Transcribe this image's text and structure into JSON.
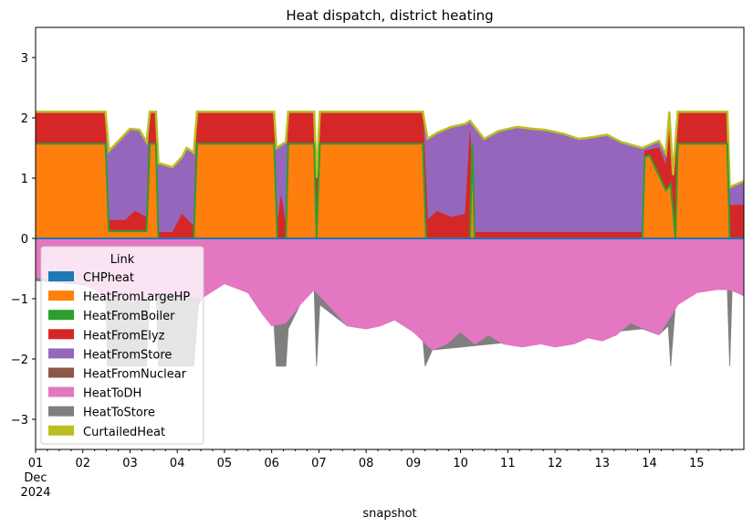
{
  "chart_data": {
    "type": "area",
    "title": "Heat dispatch, district heating",
    "xlabel": "snapshot",
    "ylabel": "",
    "ylim": [
      -3.5,
      3.5
    ],
    "xlim": [
      1,
      16
    ],
    "yticks": [
      -3,
      -2,
      -1,
      0,
      1,
      2,
      3
    ],
    "xticks": [
      {
        "x": 1,
        "label": "01"
      },
      {
        "x": 2,
        "label": "02"
      },
      {
        "x": 3,
        "label": "03"
      },
      {
        "x": 4,
        "label": "04"
      },
      {
        "x": 5,
        "label": "05"
      },
      {
        "x": 6,
        "label": "06"
      },
      {
        "x": 7,
        "label": "07"
      },
      {
        "x": 8,
        "label": "08"
      },
      {
        "x": 9,
        "label": "09"
      },
      {
        "x": 10,
        "label": "10"
      },
      {
        "x": 11,
        "label": "11"
      },
      {
        "x": 12,
        "label": "12"
      },
      {
        "x": 13,
        "label": "13"
      },
      {
        "x": 14,
        "label": "14"
      },
      {
        "x": 15,
        "label": "15"
      }
    ],
    "xtick_sub1": "Dec",
    "xtick_sub2": "2024",
    "grid": false,
    "legend": {
      "title": "Link",
      "placement": "lower-left",
      "entries": [
        {
          "name": "CHPheat",
          "color": "#1f77b4"
        },
        {
          "name": "HeatFromLargeHP",
          "color": "#ff7f0e"
        },
        {
          "name": "HeatFromBoiler",
          "color": "#2ca02c"
        },
        {
          "name": "HeatFromElyz",
          "color": "#d62728"
        },
        {
          "name": "HeatFromStore",
          "color": "#9467bd"
        },
        {
          "name": "HeatFromNuclear",
          "color": "#8c564b"
        },
        {
          "name": "HeatToDH",
          "color": "#e377c2"
        },
        {
          "name": "HeatToStore",
          "color": "#7f7f7f"
        },
        {
          "name": "CurtailedHeat",
          "color": "#bcbd22"
        }
      ]
    },
    "positive_series": [
      {
        "name": "HeatFromLargeHP",
        "color": "#ff7f0e",
        "points": [
          [
            1,
            1.57
          ],
          [
            2.48,
            1.57
          ],
          [
            2.55,
            0.12
          ],
          [
            3.35,
            0.12
          ],
          [
            3.42,
            1.57
          ],
          [
            3.55,
            1.57
          ],
          [
            3.6,
            0
          ],
          [
            4.35,
            0
          ],
          [
            4.42,
            1.57
          ],
          [
            6.05,
            1.57
          ],
          [
            6.12,
            0
          ],
          [
            6.3,
            0
          ],
          [
            6.35,
            1.57
          ],
          [
            6.9,
            1.57
          ],
          [
            6.95,
            0
          ],
          [
            7.02,
            1.57
          ],
          [
            9.2,
            1.57
          ],
          [
            9.27,
            0
          ],
          [
            10.2,
            0
          ],
          [
            10.25,
            1.57
          ],
          [
            10.3,
            0
          ],
          [
            13.85,
            0
          ],
          [
            13.9,
            1.35
          ],
          [
            14.0,
            1.38
          ],
          [
            14.35,
            0.8
          ],
          [
            14.45,
            0.9
          ],
          [
            14.55,
            0
          ],
          [
            14.6,
            1.57
          ],
          [
            15.65,
            1.57
          ],
          [
            15.7,
            0
          ],
          [
            16,
            0
          ]
        ]
      },
      {
        "name": "HeatFromElyz",
        "color": "#d62728",
        "points": [
          [
            1,
            2.1
          ],
          [
            2.48,
            2.1
          ],
          [
            2.52,
            0.3
          ],
          [
            2.9,
            0.3
          ],
          [
            3.1,
            0.45
          ],
          [
            3.35,
            0.35
          ],
          [
            3.42,
            2.1
          ],
          [
            3.55,
            2.1
          ],
          [
            3.6,
            0.1
          ],
          [
            3.9,
            0.1
          ],
          [
            4.1,
            0.4
          ],
          [
            4.35,
            0.2
          ],
          [
            4.42,
            2.1
          ],
          [
            6.05,
            2.1
          ],
          [
            6.1,
            0.1
          ],
          [
            6.2,
            0.7
          ],
          [
            6.3,
            0.2
          ],
          [
            6.35,
            2.1
          ],
          [
            6.9,
            2.1
          ],
          [
            6.95,
            1.0
          ],
          [
            7.02,
            2.1
          ],
          [
            9.2,
            2.1
          ],
          [
            9.3,
            0.3
          ],
          [
            9.5,
            0.45
          ],
          [
            9.8,
            0.35
          ],
          [
            10.1,
            0.4
          ],
          [
            10.2,
            1.75
          ],
          [
            10.3,
            0.1
          ],
          [
            13.85,
            0.1
          ],
          [
            13.9,
            1.45
          ],
          [
            14.2,
            1.5
          ],
          [
            14.35,
            1.2
          ],
          [
            14.42,
            2.1
          ],
          [
            14.5,
            1.0
          ],
          [
            14.6,
            2.1
          ],
          [
            15.65,
            2.1
          ],
          [
            15.7,
            0.55
          ],
          [
            16,
            0.55
          ]
        ]
      },
      {
        "name": "HeatFromStore",
        "color": "#9467bd",
        "points": [
          [
            1,
            2.1
          ],
          [
            2.48,
            2.1
          ],
          [
            2.55,
            1.45
          ],
          [
            2.8,
            1.65
          ],
          [
            3.0,
            1.82
          ],
          [
            3.2,
            1.8
          ],
          [
            3.35,
            1.6
          ],
          [
            3.42,
            2.1
          ],
          [
            3.55,
            2.1
          ],
          [
            3.6,
            1.25
          ],
          [
            3.9,
            1.18
          ],
          [
            4.1,
            1.35
          ],
          [
            4.2,
            1.5
          ],
          [
            4.35,
            1.42
          ],
          [
            4.42,
            2.1
          ],
          [
            6.05,
            2.1
          ],
          [
            6.1,
            1.5
          ],
          [
            6.3,
            1.6
          ],
          [
            6.35,
            2.1
          ],
          [
            6.9,
            2.1
          ],
          [
            6.95,
            1.0
          ],
          [
            7.02,
            2.1
          ],
          [
            9.2,
            2.1
          ],
          [
            9.3,
            1.65
          ],
          [
            9.5,
            1.75
          ],
          [
            9.8,
            1.85
          ],
          [
            10.1,
            1.9
          ],
          [
            10.2,
            1.95
          ],
          [
            10.35,
            1.8
          ],
          [
            10.5,
            1.65
          ],
          [
            10.8,
            1.78
          ],
          [
            11.2,
            1.85
          ],
          [
            11.5,
            1.82
          ],
          [
            11.8,
            1.8
          ],
          [
            12.2,
            1.73
          ],
          [
            12.5,
            1.65
          ],
          [
            12.8,
            1.68
          ],
          [
            13.1,
            1.72
          ],
          [
            13.4,
            1.6
          ],
          [
            13.85,
            1.5
          ],
          [
            14.2,
            1.62
          ],
          [
            14.35,
            1.4
          ],
          [
            14.42,
            2.1
          ],
          [
            14.5,
            1.05
          ],
          [
            14.6,
            2.1
          ],
          [
            15.65,
            2.1
          ],
          [
            15.7,
            0.85
          ],
          [
            16,
            0.95
          ]
        ]
      }
    ],
    "negative_series": [
      {
        "name": "HeatToDH",
        "color": "#e377c2",
        "points": [
          [
            1,
            -0.65
          ],
          [
            2.0,
            -0.75
          ],
          [
            2.5,
            -0.95
          ],
          [
            3.0,
            -1.05
          ],
          [
            3.5,
            -0.95
          ],
          [
            4.0,
            -0.9
          ],
          [
            4.5,
            -1.0
          ],
          [
            5.0,
            -0.75
          ],
          [
            5.5,
            -0.9
          ],
          [
            5.8,
            -1.25
          ],
          [
            6.0,
            -1.45
          ],
          [
            6.3,
            -1.4
          ],
          [
            6.6,
            -1.1
          ],
          [
            6.9,
            -0.85
          ],
          [
            7.2,
            -1.1
          ],
          [
            7.6,
            -1.45
          ],
          [
            8.0,
            -1.5
          ],
          [
            8.3,
            -1.45
          ],
          [
            8.6,
            -1.35
          ],
          [
            9.0,
            -1.55
          ],
          [
            9.4,
            -1.85
          ],
          [
            9.7,
            -1.75
          ],
          [
            10.0,
            -1.55
          ],
          [
            10.3,
            -1.75
          ],
          [
            10.6,
            -1.6
          ],
          [
            10.9,
            -1.75
          ],
          [
            11.3,
            -1.8
          ],
          [
            11.7,
            -1.75
          ],
          [
            12.0,
            -1.8
          ],
          [
            12.4,
            -1.75
          ],
          [
            12.7,
            -1.65
          ],
          [
            13.0,
            -1.7
          ],
          [
            13.3,
            -1.6
          ],
          [
            13.6,
            -1.4
          ],
          [
            13.9,
            -1.5
          ],
          [
            14.2,
            -1.6
          ],
          [
            14.6,
            -1.1
          ],
          [
            15.0,
            -0.9
          ],
          [
            15.4,
            -0.85
          ],
          [
            15.7,
            -0.85
          ],
          [
            16,
            -0.95
          ]
        ]
      },
      {
        "name": "HeatToStore",
        "color": "#7f7f7f",
        "points": [
          [
            1,
            -0.7
          ],
          [
            2.48,
            -0.8
          ],
          [
            2.52,
            -2.12
          ],
          [
            3.35,
            -2.12
          ],
          [
            3.42,
            -0.95
          ],
          [
            3.55,
            -0.95
          ],
          [
            3.6,
            -2.12
          ],
          [
            4.35,
            -2.12
          ],
          [
            4.45,
            -1.1
          ],
          [
            4.7,
            -0.8
          ],
          [
            5.0,
            -0.75
          ],
          [
            5.5,
            -0.9
          ],
          [
            5.8,
            -1.25
          ],
          [
            6.05,
            -1.45
          ],
          [
            6.1,
            -2.12
          ],
          [
            6.3,
            -2.12
          ],
          [
            6.35,
            -1.5
          ],
          [
            6.6,
            -1.1
          ],
          [
            6.9,
            -0.85
          ],
          [
            6.95,
            -2.12
          ],
          [
            7.02,
            -1.1
          ],
          [
            7.6,
            -1.45
          ],
          [
            8.0,
            -1.5
          ],
          [
            8.3,
            -1.45
          ],
          [
            8.6,
            -1.35
          ],
          [
            9.0,
            -1.55
          ],
          [
            9.2,
            -1.65
          ],
          [
            9.25,
            -2.12
          ],
          [
            9.4,
            -1.85
          ],
          [
            13.85,
            -1.5
          ],
          [
            14.2,
            -1.6
          ],
          [
            14.4,
            -1.45
          ],
          [
            14.45,
            -2.12
          ],
          [
            14.55,
            -1.1
          ],
          [
            15.0,
            -0.9
          ],
          [
            15.4,
            -0.85
          ],
          [
            15.65,
            -0.85
          ],
          [
            15.7,
            -2.12
          ],
          [
            15.75,
            -0.85
          ],
          [
            16,
            -0.95
          ]
        ]
      }
    ]
  }
}
